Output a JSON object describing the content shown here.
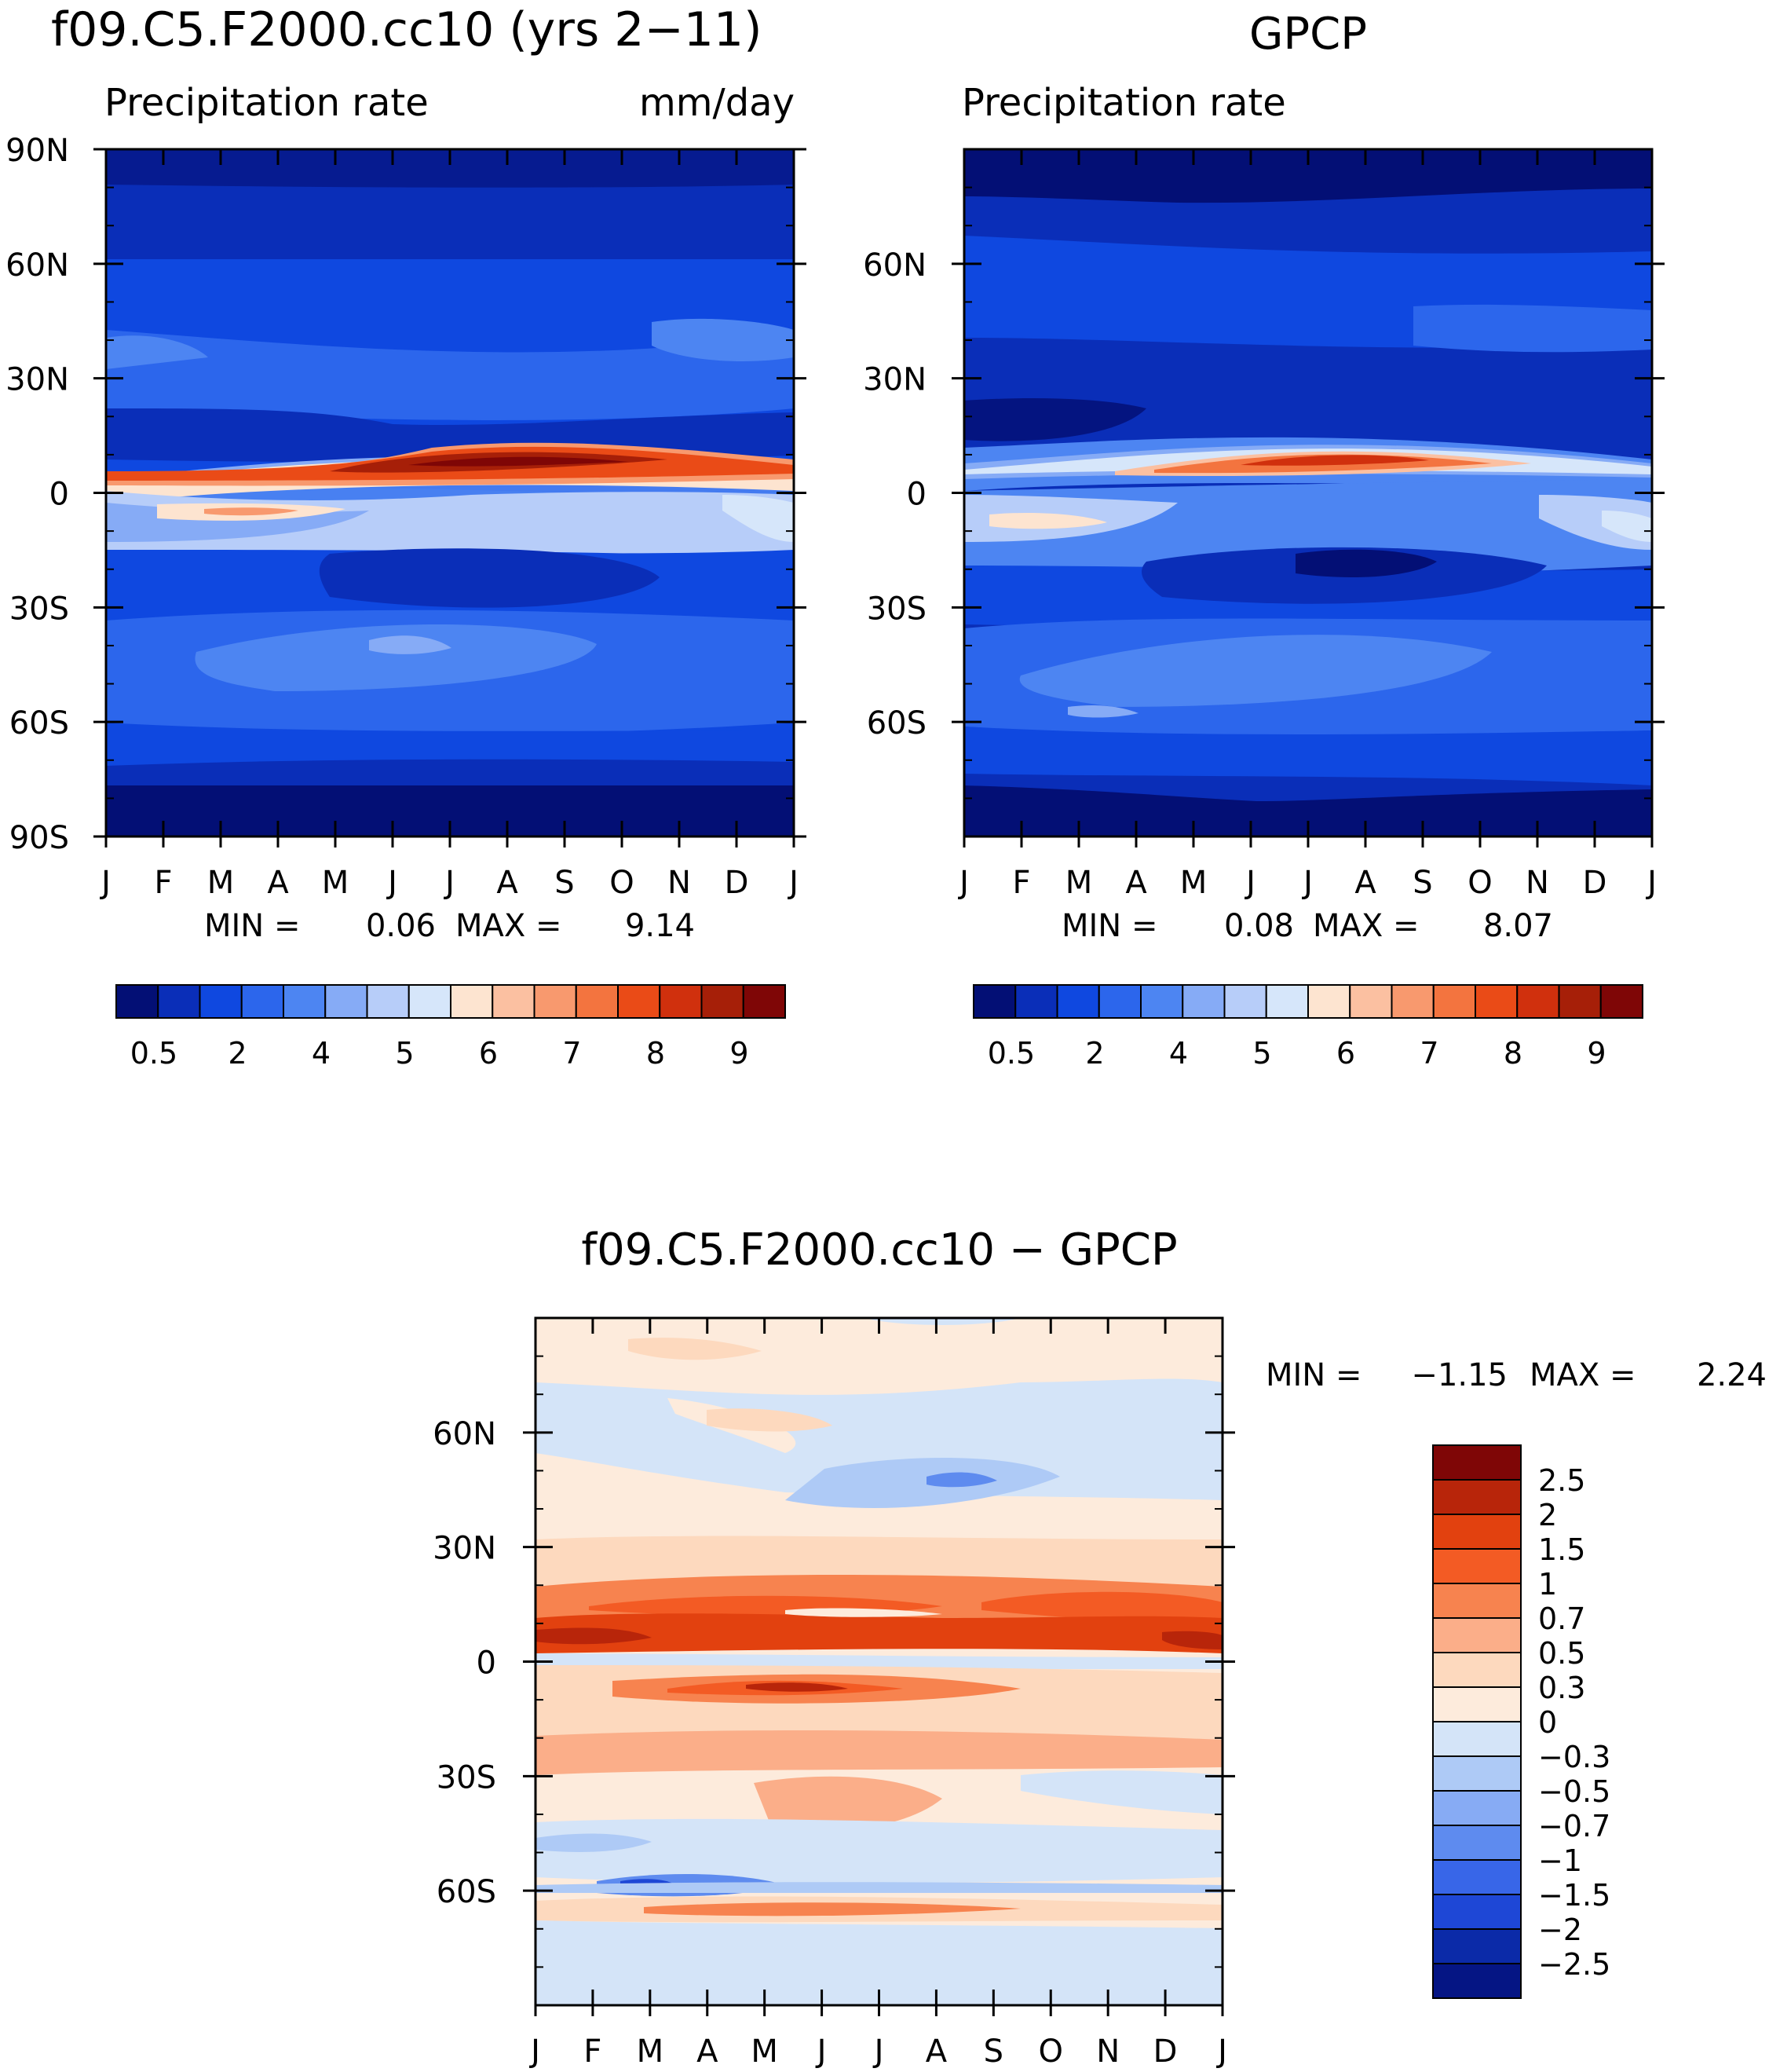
{
  "chart_data": [
    {
      "type": "heatmap",
      "title": "f09.C5.F2000.cc10 (yrs 2-11)",
      "title_display": "f09.C5.F2000.cc10 (yrs 2−11)",
      "subtitle_left": "Precipitation rate",
      "subtitle_right": "mm/day",
      "x_ticks": [
        "J",
        "F",
        "M",
        "A",
        "M",
        "J",
        "J",
        "A",
        "S",
        "O",
        "N",
        "D",
        "J"
      ],
      "y_ticks": [
        "90N",
        "60N",
        "30N",
        "0",
        "30S",
        "60S",
        "90S"
      ],
      "ylim": [
        -90,
        90
      ],
      "min_label": "MIN =",
      "min_value": "0.06",
      "max_label": "MAX =",
      "max_value": "9.14",
      "colorbar_labels": [
        "0.5",
        "2",
        "4",
        "5",
        "6",
        "7",
        "8",
        "9"
      ],
      "colorbar_colors": [
        "#030f75",
        "#0a2eb8",
        "#0f48e0",
        "#2c66ec",
        "#4d85f2",
        "#86abf6",
        "#b7cdf9",
        "#d6e6fa",
        "#fde4d0",
        "#fbc0a1",
        "#f8996e",
        "#f3743f",
        "#ea4b17",
        "#d0300d",
        "#a61f08",
        "#7f0606"
      ]
    },
    {
      "type": "heatmap",
      "title": "GPCP",
      "subtitle_left": "Precipitation rate",
      "x_ticks": [
        "J",
        "F",
        "M",
        "A",
        "M",
        "J",
        "J",
        "A",
        "S",
        "O",
        "N",
        "D",
        "J"
      ],
      "y_ticks": [
        "60N",
        "30N",
        "0",
        "30S",
        "60S"
      ],
      "ylim": [
        -90,
        90
      ],
      "min_label": "MIN =",
      "min_value": "0.08",
      "max_label": "MAX =",
      "max_value": "8.07",
      "colorbar_labels": [
        "0.5",
        "2",
        "4",
        "5",
        "6",
        "7",
        "8",
        "9"
      ],
      "colorbar_colors": [
        "#030f75",
        "#0a2eb8",
        "#0f48e0",
        "#2c66ec",
        "#4d85f2",
        "#86abf6",
        "#b7cdf9",
        "#d6e6fa",
        "#fde4d0",
        "#fbc0a1",
        "#f8996e",
        "#f3743f",
        "#ea4b17",
        "#d0300d",
        "#a61f08",
        "#7f0606"
      ]
    },
    {
      "type": "heatmap",
      "title": "f09.C5.F2000.cc10 - GPCP",
      "title_display": "f09.C5.F2000.cc10 − GPCP",
      "x_ticks": [
        "J",
        "F",
        "M",
        "A",
        "M",
        "J",
        "J",
        "A",
        "S",
        "O",
        "N",
        "D",
        "J"
      ],
      "y_ticks": [
        "60N",
        "30N",
        "0",
        "30S",
        "60S"
      ],
      "ylim": [
        -90,
        90
      ],
      "min_label": "MIN =",
      "min_value": "−1.15",
      "max_label": "MAX =",
      "max_value": "2.24",
      "colorbar_labels": [
        "2.5",
        "2",
        "1.5",
        "1",
        "0.7",
        "0.5",
        "0.3",
        "0",
        "−0.3",
        "−0.5",
        "−0.7",
        "−1",
        "−1.5",
        "−2",
        "−2.5"
      ],
      "colorbar_colors": [
        "#7f0606",
        "#b8250a",
        "#e2410f",
        "#f35b24",
        "#f7834f",
        "#fbae89",
        "#fdd9be",
        "#fdebdc",
        "#d4e4f8",
        "#aecaf6",
        "#87abf4",
        "#5e8bef",
        "#3866e8",
        "#1e47d6",
        "#0b2aa8",
        "#051584"
      ]
    }
  ]
}
